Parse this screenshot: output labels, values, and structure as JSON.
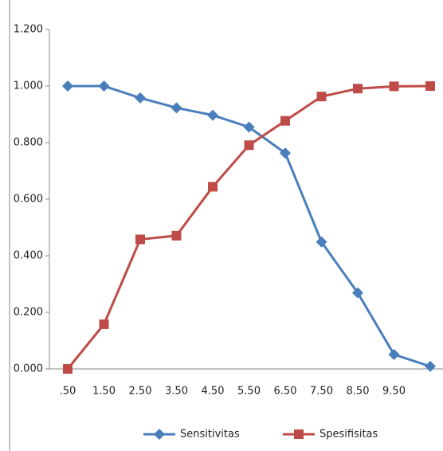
{
  "chart_data": {
    "type": "line",
    "categories": [
      ".50",
      "1.50",
      "2.50",
      "3.50",
      "4.50",
      "5.50",
      "6.50",
      "7.50",
      "8.50",
      "9.50",
      null
    ],
    "series": [
      {
        "name": "Sensitivitas",
        "color": "#4a7ebb",
        "marker": "diamond",
        "values": [
          1.0,
          1.0,
          0.958,
          0.923,
          0.897,
          0.855,
          0.763,
          0.449,
          0.269,
          0.051,
          0.009
        ]
      },
      {
        "name": "Spesifisitas",
        "color": "#be4b48",
        "marker": "square",
        "values": [
          0.0,
          0.158,
          0.458,
          0.471,
          0.644,
          0.791,
          0.877,
          0.963,
          0.991,
          0.999,
          1.0
        ]
      }
    ],
    "ylim": [
      0,
      1.2
    ],
    "yticks": [
      {
        "value": 0,
        "label": "0.000"
      },
      {
        "value": 0.2,
        "label": "0.200"
      },
      {
        "value": 0.4,
        "label": "0.400"
      },
      {
        "value": 0.6,
        "label": "0.600"
      },
      {
        "value": 0.8,
        "label": "0.800"
      },
      {
        "value": 1.0,
        "label": "1.000"
      },
      {
        "value": 1.2,
        "label": "1.200"
      }
    ],
    "grid": false,
    "legend": "bottom"
  }
}
